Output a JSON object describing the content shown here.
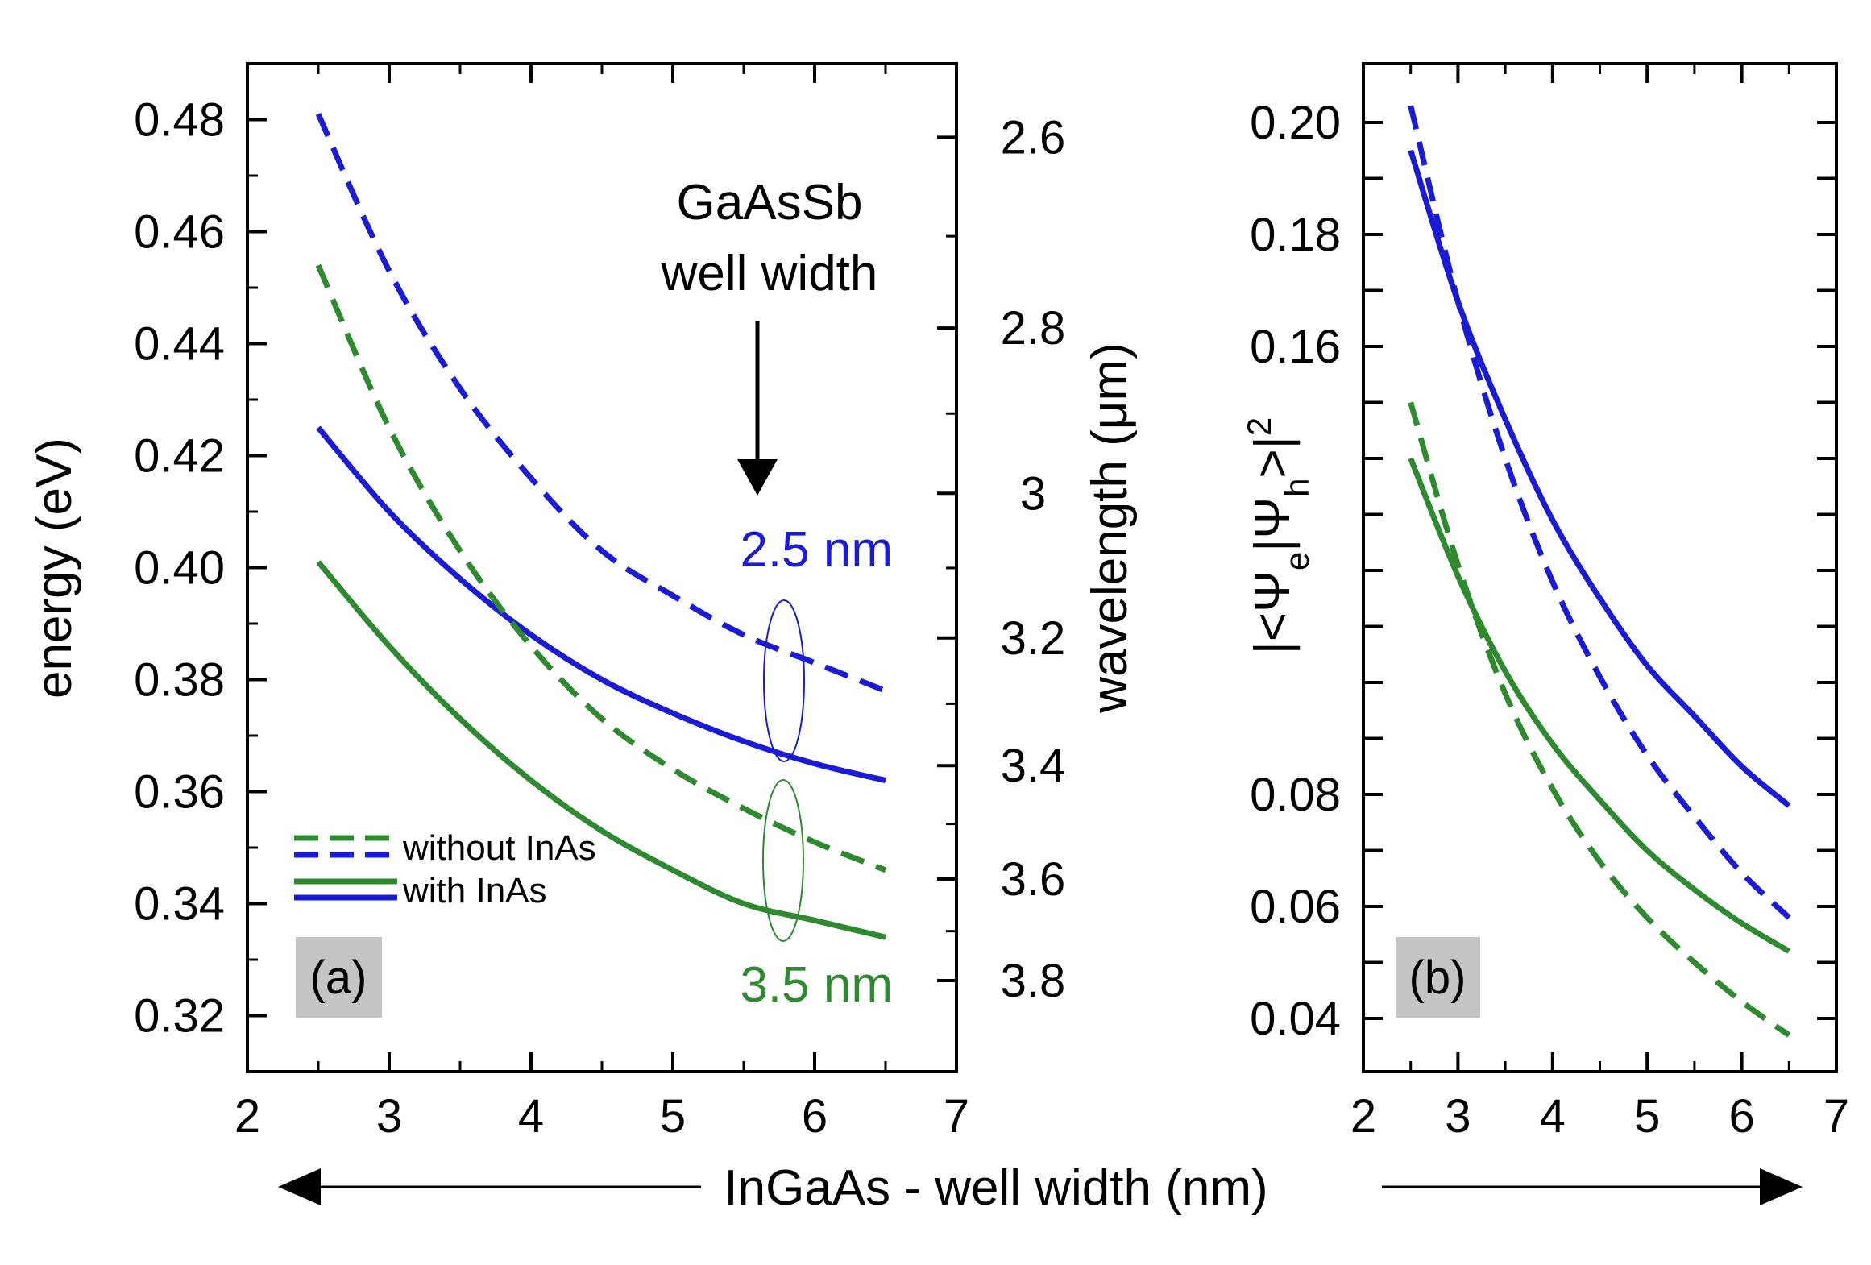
{
  "chart_data": [
    {
      "panel": "a",
      "type": "line",
      "panel_label": "(a)",
      "xlabel": "InGaAs - well width (nm)",
      "ylabel": "energy (eV)",
      "y2label_parts": [
        "wavelength (",
        "μ",
        "m)"
      ],
      "xlim": [
        2,
        7
      ],
      "ylim": [
        0.31,
        0.49
      ],
      "x_ticks": [
        "2",
        "3",
        "4",
        "5",
        "6",
        "7"
      ],
      "y_ticks": [
        "0.32",
        "0.34",
        "0.36",
        "0.38",
        "0.40",
        "0.42",
        "0.44",
        "0.46",
        "0.48"
      ],
      "y2_ticks": [
        "2.6",
        "2.8",
        "3",
        "3.2",
        "3.4",
        "3.6",
        "3.8"
      ],
      "series": [
        {
          "name": "without InAs, GaAsSb 2.5 nm",
          "color": "#1a1ad9",
          "style": "dashed",
          "x": [
            2.5,
            3.0,
            3.5,
            4.0,
            4.5,
            5.0,
            5.5,
            6.0,
            6.5
          ],
          "y": [
            0.481,
            0.453,
            0.432,
            0.416,
            0.403,
            0.395,
            0.388,
            0.383,
            0.378
          ]
        },
        {
          "name": "with InAs, GaAsSb 2.5 nm",
          "color": "#1a1ad9",
          "style": "solid",
          "x": [
            2.5,
            3.0,
            3.5,
            4.0,
            4.5,
            5.0,
            5.5,
            6.0,
            6.5
          ],
          "y": [
            0.425,
            0.41,
            0.398,
            0.388,
            0.38,
            0.374,
            0.369,
            0.365,
            0.362
          ]
        },
        {
          "name": "without InAs, GaAsSb 3.5 nm",
          "color": "#2e8a2e",
          "style": "dashed",
          "x": [
            2.5,
            3.0,
            3.5,
            4.0,
            4.5,
            5.0,
            5.5,
            6.0,
            6.5
          ],
          "y": [
            0.454,
            0.425,
            0.403,
            0.386,
            0.373,
            0.364,
            0.357,
            0.351,
            0.346
          ]
        },
        {
          "name": "with InAs, GaAsSb 3.5 nm",
          "color": "#2e8a2e",
          "style": "solid",
          "x": [
            2.5,
            3.0,
            3.5,
            4.0,
            4.5,
            5.0,
            5.5,
            6.0,
            6.5
          ],
          "y": [
            0.401,
            0.386,
            0.373,
            0.362,
            0.353,
            0.346,
            0.34,
            0.337,
            0.334
          ]
        }
      ],
      "legend": [
        {
          "label": "without InAs",
          "style": "dashed"
        },
        {
          "label": "with InAs",
          "style": "solid"
        }
      ],
      "annotations": {
        "title_line1": "GaAsSb",
        "title_line2": "well width",
        "label_blue": "2.5 nm",
        "label_green": "3.5 nm"
      }
    },
    {
      "panel": "b",
      "type": "line",
      "panel_label": "(b)",
      "ylabel": "|<Ψe|Ψh>|²",
      "xlim": [
        2,
        7
      ],
      "ylim": [
        0.0305,
        0.2105
      ],
      "x_ticks": [
        "2",
        "3",
        "4",
        "5",
        "6",
        "7"
      ],
      "y_ticks": [
        "0.04",
        "0.06",
        "0.08",
        "0.16",
        "0.18",
        "0.20"
      ],
      "series": [
        {
          "name": "without InAs, GaAsSb 2.5 nm",
          "color": "#1a1ad9",
          "style": "dashed",
          "x": [
            2.5,
            3.0,
            3.5,
            4.0,
            4.5,
            5.0,
            5.5,
            6.0,
            6.5
          ],
          "y": [
            0.203,
            0.168,
            0.14,
            0.118,
            0.101,
            0.087,
            0.076,
            0.066,
            0.058
          ]
        },
        {
          "name": "with InAs, GaAsSb 2.5 nm",
          "color": "#1a1ad9",
          "style": "solid",
          "x": [
            2.5,
            3.0,
            3.5,
            4.0,
            4.5,
            5.0,
            5.5,
            6.0,
            6.5
          ],
          "y": [
            0.195,
            0.168,
            0.147,
            0.129,
            0.115,
            0.103,
            0.094,
            0.085,
            0.078
          ]
        },
        {
          "name": "without InAs, GaAsSb 3.5 nm",
          "color": "#2e8a2e",
          "style": "dashed",
          "x": [
            2.5,
            3.0,
            3.5,
            4.0,
            4.5,
            5.0,
            5.5,
            6.0,
            6.5
          ],
          "y": [
            0.15,
            0.121,
            0.098,
            0.081,
            0.068,
            0.058,
            0.05,
            0.043,
            0.037
          ]
        },
        {
          "name": "with InAs, GaAsSb 3.5 nm",
          "color": "#2e8a2e",
          "style": "solid",
          "x": [
            2.5,
            3.0,
            3.5,
            4.0,
            4.5,
            5.0,
            5.5,
            6.0,
            6.5
          ],
          "y": [
            0.14,
            0.119,
            0.102,
            0.089,
            0.079,
            0.07,
            0.063,
            0.057,
            0.052
          ]
        }
      ]
    }
  ],
  "figure": {
    "bottom_axis_title": "InGaAs - well width (nm)"
  }
}
